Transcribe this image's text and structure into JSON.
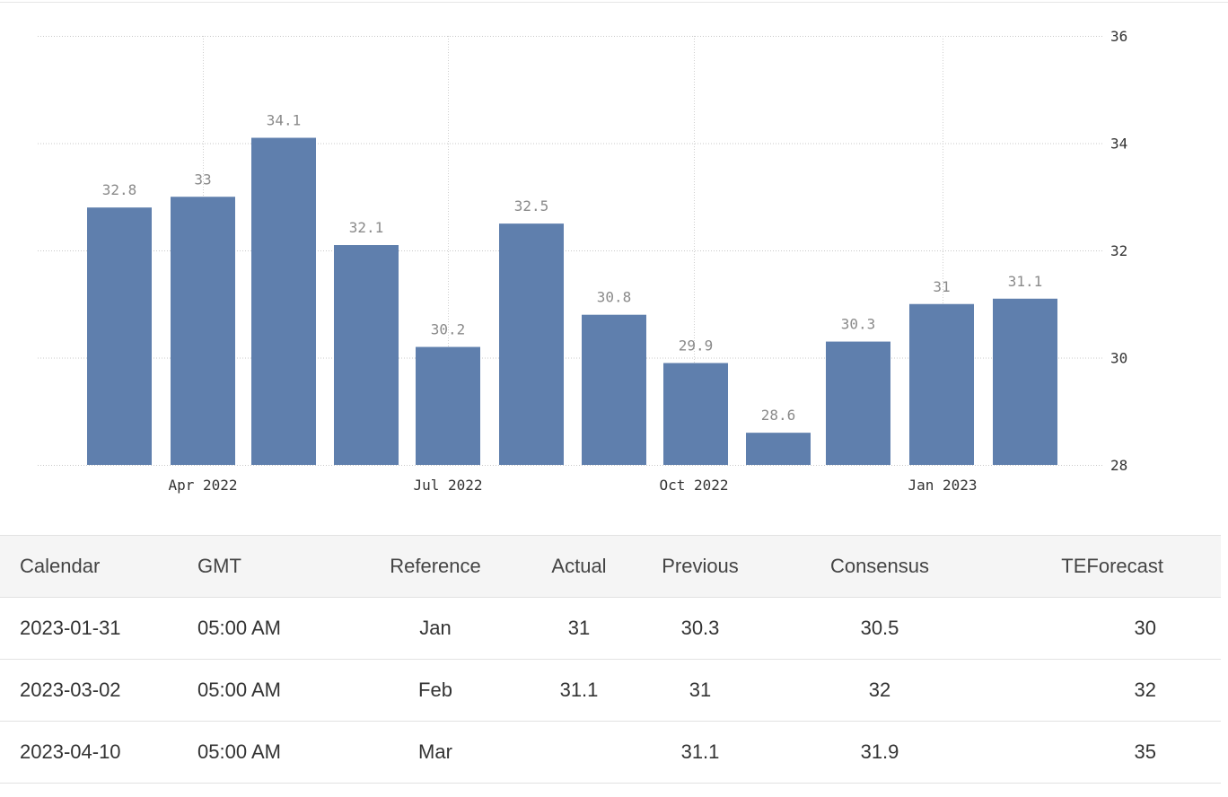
{
  "chart_data": {
    "type": "bar",
    "values": [
      32.8,
      33,
      34.1,
      32.1,
      30.2,
      32.5,
      30.8,
      29.9,
      28.6,
      30.3,
      31,
      31.1
    ],
    "value_labels": [
      "32.8",
      "33",
      "34.1",
      "32.1",
      "30.2",
      "32.5",
      "30.8",
      "29.9",
      "28.6",
      "30.3",
      "31",
      "31.1"
    ],
    "x_tick_labels": [
      "Apr 2022",
      "Jul 2022",
      "Oct 2022",
      "Jan 2023"
    ],
    "y_ticks": [
      28,
      30,
      32,
      34,
      36
    ],
    "ylim": [
      28,
      36
    ],
    "y_axis_position": "right",
    "grid": true,
    "title": "",
    "xlabel": "",
    "ylabel": "",
    "bar_color": "#5f7fad"
  },
  "table": {
    "headers": [
      "Calendar",
      "GMT",
      "Reference",
      "Actual",
      "Previous",
      "Consensus",
      "TEForecast"
    ],
    "rows": [
      [
        "2023-01-31",
        "05:00 AM",
        "Jan",
        "31",
        "30.3",
        "30.5",
        "30"
      ],
      [
        "2023-03-02",
        "05:00 AM",
        "Feb",
        "31.1",
        "31",
        "32",
        "32"
      ],
      [
        "2023-04-10",
        "05:00 AM",
        "Mar",
        "",
        "31.1",
        "31.9",
        "35"
      ]
    ]
  }
}
